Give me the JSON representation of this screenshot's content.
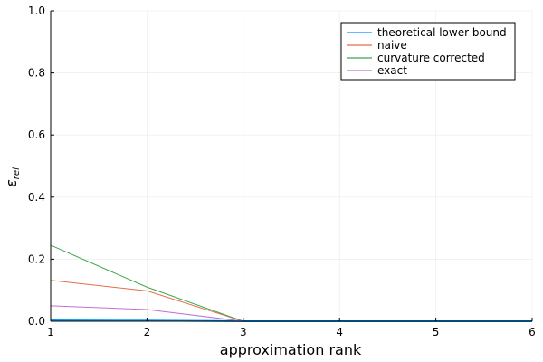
{
  "chart_data": {
    "type": "line",
    "xlabel": "approximation rank",
    "ylabel": "εrel",
    "ylabel_main": "ε",
    "ylabel_sub": "rel",
    "xlim": [
      1,
      6
    ],
    "ylim": [
      0,
      1
    ],
    "x_ticks": [
      1,
      2,
      3,
      4,
      5,
      6
    ],
    "y_ticks": [
      0.0,
      0.2,
      0.4,
      0.6,
      0.8,
      1.0
    ],
    "x_tick_labels": [
      "1",
      "2",
      "3",
      "4",
      "5",
      "6"
    ],
    "y_tick_labels": [
      "0.0",
      "0.2",
      "0.4",
      "0.6",
      "0.8",
      "1.0"
    ],
    "grid": true,
    "legend_position": "top-right",
    "series": [
      {
        "name": "theoretical lower bound",
        "color": "#009AFA",
        "x": [
          1,
          2,
          3,
          4,
          5,
          6
        ],
        "values": [
          0.003,
          0.002,
          0.0,
          0.0,
          0.0,
          0.0
        ]
      },
      {
        "name": "naive",
        "color": "#E36F47",
        "x": [
          1,
          2,
          3,
          4,
          5,
          6
        ],
        "values": [
          0.132,
          0.098,
          0.0,
          0.0,
          0.0,
          0.0
        ]
      },
      {
        "name": "curvature corrected",
        "color": "#3EA44E",
        "x": [
          1,
          2,
          3,
          4,
          5,
          6
        ],
        "values": [
          0.245,
          0.11,
          0.0,
          0.0,
          0.0,
          0.0
        ]
      },
      {
        "name": "exact",
        "color": "#C271D2",
        "x": [
          1,
          2,
          3,
          4,
          5,
          6
        ],
        "values": [
          0.05,
          0.038,
          0.0,
          0.0,
          0.0,
          0.0
        ]
      }
    ]
  }
}
